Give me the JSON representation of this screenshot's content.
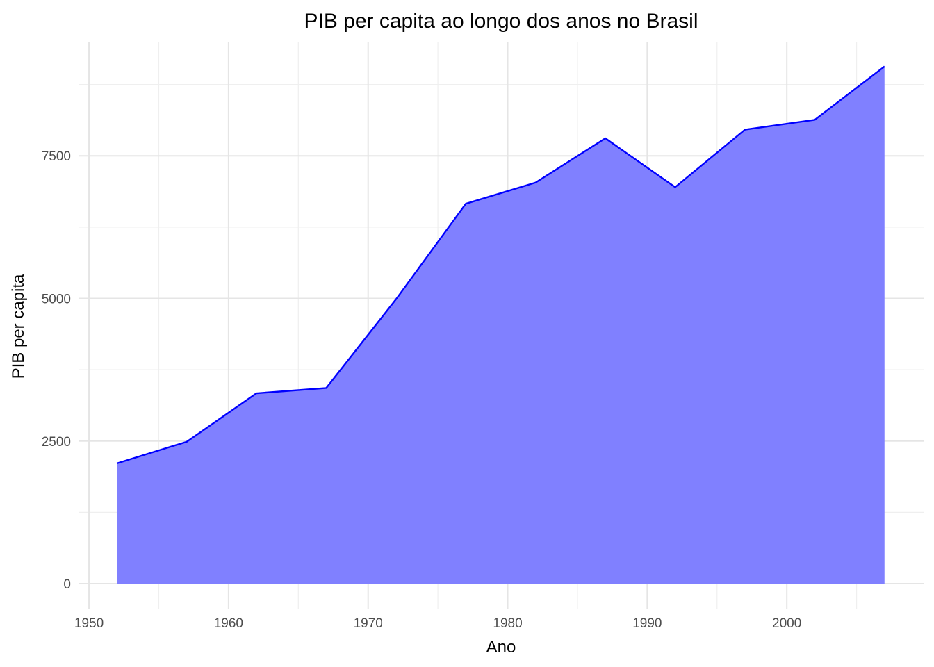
{
  "chart_data": {
    "type": "area",
    "title": "PIB per capita ao longo dos anos no Brasil",
    "xlabel": "Ano",
    "ylabel": "PIB per capita",
    "x": [
      1952,
      1957,
      1962,
      1967,
      1972,
      1977,
      1982,
      1987,
      1992,
      1997,
      2002,
      2007
    ],
    "series": [
      {
        "values": [
          2109,
          2487,
          3337,
          3430,
          4986,
          6660,
          7031,
          7807,
          6950,
          7958,
          8131,
          9066
        ]
      }
    ],
    "xlim": [
      1949.3,
      2009.8
    ],
    "ylim": [
      -450,
      9500
    ],
    "x_ticks": [
      1950,
      1960,
      1970,
      1980,
      1990,
      2000
    ],
    "x_tick_labels": [
      "1950",
      "1960",
      "1970",
      "1980",
      "1990",
      "2000"
    ],
    "x_minor_ticks": [
      1955,
      1965,
      1975,
      1985,
      1995,
      2005
    ],
    "y_ticks": [
      0,
      2500,
      5000,
      7500
    ],
    "y_tick_labels": [
      "0",
      "2500",
      "5000",
      "7500"
    ],
    "y_minor_ticks": [
      1250,
      3750,
      6250,
      8750
    ],
    "fill_color": "#8080ff",
    "line_color": "#0000ff",
    "grid": true,
    "legend": "none"
  }
}
